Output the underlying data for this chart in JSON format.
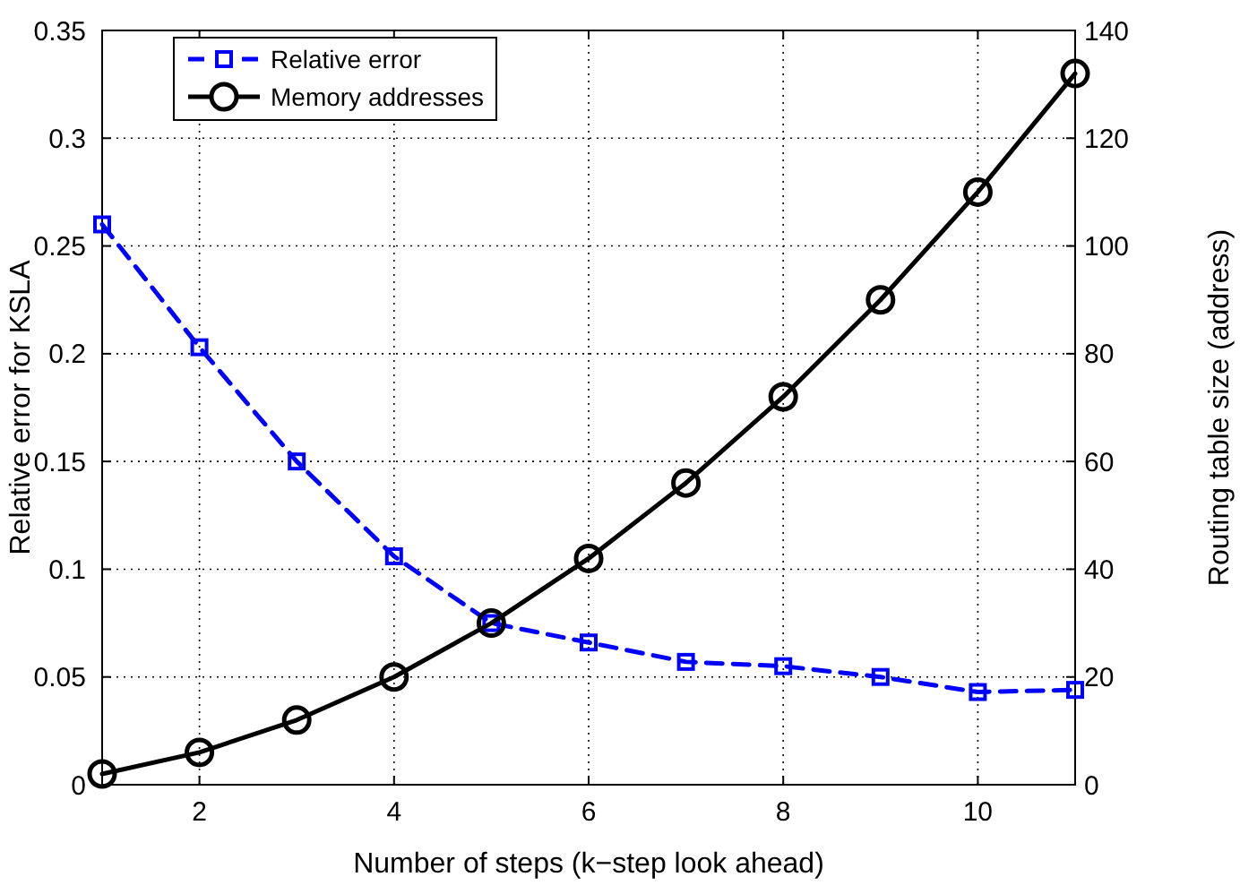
{
  "chart_data": {
    "type": "line",
    "xlabel": "Number of steps (k−step look ahead)",
    "ylabel": "Relative error for KSLA",
    "y2label": "Routing table size (address)",
    "x": [
      1,
      2,
      3,
      4,
      5,
      6,
      7,
      8,
      9,
      10,
      11
    ],
    "xlim": [
      1,
      11
    ],
    "xticks": [
      2,
      4,
      6,
      8,
      10
    ],
    "ylim": [
      0,
      0.35
    ],
    "yticks": [
      0,
      0.05,
      0.1,
      0.15,
      0.2,
      0.25,
      0.3,
      0.35
    ],
    "y2lim": [
      0,
      140
    ],
    "y2ticks": [
      0,
      20,
      40,
      60,
      80,
      100,
      120,
      140
    ],
    "grid": true,
    "legend": "top left",
    "series": [
      {
        "name": "Relative error",
        "color": "#0000ff",
        "marker": "square",
        "line_style": "dashed",
        "values": [
          0.26,
          0.203,
          0.15,
          0.106,
          0.075,
          0.066,
          0.057,
          0.055,
          0.05,
          0.043,
          0.044
        ]
      },
      {
        "name": "Memory addresses",
        "color": "#000000",
        "marker": "circle",
        "line_style": "solid",
        "axis": "y2",
        "values": [
          2,
          6,
          12,
          20,
          30,
          42,
          56,
          72,
          90,
          110,
          132
        ]
      }
    ]
  }
}
